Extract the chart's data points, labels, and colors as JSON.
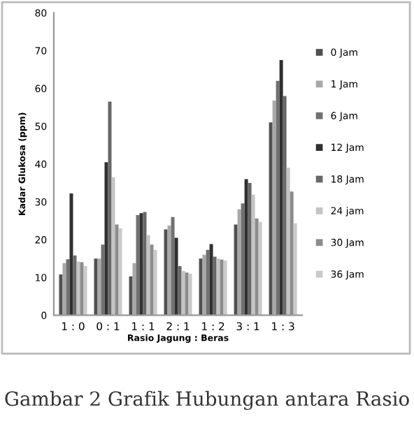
{
  "chart_data": {
    "type": "bar",
    "xlabel": "Rasio Jagung : Beras",
    "ylabel": "Kadar Glukosa (ppm)",
    "categories": [
      "1 : 0",
      "0 : 1",
      "1 : 1",
      "2 : 1",
      "1 : 2",
      "3 : 1",
      "1 : 3"
    ],
    "series": [
      {
        "name": "0 Jam",
        "color": "#505050",
        "values": [
          10.8,
          15,
          10.3,
          22.7,
          15,
          24,
          51
        ]
      },
      {
        "name": "1 Jam",
        "color": "#a8a8a8",
        "values": [
          13.8,
          15,
          13.8,
          23.7,
          16,
          28,
          56.8
        ]
      },
      {
        "name": "6 Jam",
        "color": "#707070",
        "values": [
          14.8,
          18.7,
          26.5,
          26,
          17.3,
          29.6,
          62
        ]
      },
      {
        "name": "12 Jam",
        "color": "#303030",
        "values": [
          32.2,
          40.5,
          27,
          20.5,
          18.8,
          36,
          67.5
        ]
      },
      {
        "name": "18 Jam",
        "color": "#686868",
        "values": [
          15.8,
          56.5,
          27.3,
          13,
          15.5,
          35,
          58
        ]
      },
      {
        "name": "24 jam",
        "color": "#c4c4c4",
        "values": [
          14.2,
          36.5,
          21.2,
          11.7,
          15,
          31.9,
          39
        ]
      },
      {
        "name": "30 Jam",
        "color": "#8c8c8c",
        "values": [
          14,
          24,
          18.7,
          11.3,
          14.7,
          25.6,
          32.7
        ]
      },
      {
        "name": "36 Jam",
        "color": "#cacaca",
        "values": [
          13,
          23,
          17.3,
          11,
          14.5,
          24.7,
          24.3
        ]
      }
    ],
    "ylim": [
      0,
      80
    ],
    "yticks": [
      0,
      10,
      20,
      30,
      40,
      50,
      60,
      70,
      80
    ],
    "grid": false,
    "legend": "right",
    "annotations": [
      "Gambar 2 Grafik Hubungan antara Rasio"
    ]
  }
}
